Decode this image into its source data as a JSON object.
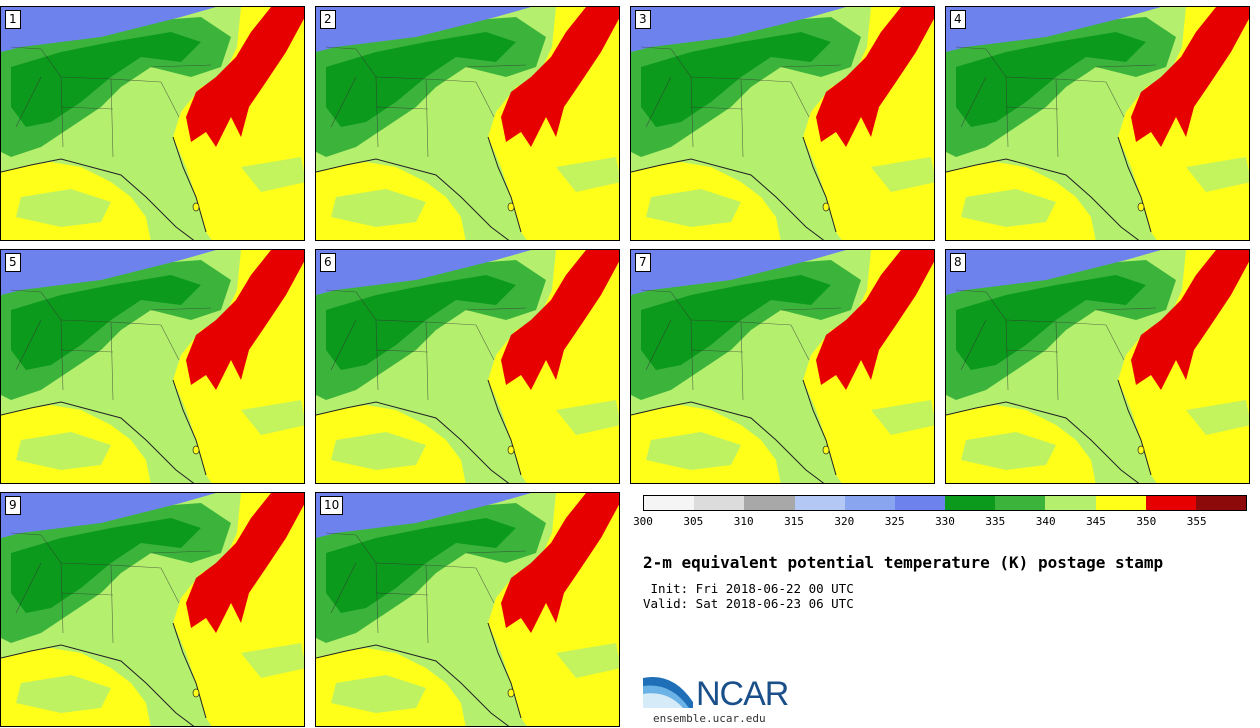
{
  "panels": [
    "1",
    "2",
    "3",
    "4",
    "5",
    "6",
    "7",
    "8",
    "9",
    "10"
  ],
  "colorbar": {
    "colors": [
      "#f5f5f5",
      "#dcdcdc",
      "#a8a8a8",
      "#b4c8f5",
      "#8aa5f0",
      "#6e82ee",
      "#0c9a1c",
      "#3cb43c",
      "#b4f06e",
      "#ffff1a",
      "#e60000",
      "#8c0a0a"
    ],
    "ticks": [
      "300",
      "305",
      "310",
      "315",
      "320",
      "325",
      "330",
      "335",
      "340",
      "345",
      "350",
      "355"
    ]
  },
  "title": "2-m equivalent potential temperature (K) postage stamp",
  "init": " Init: Fri 2018-06-22 00 UTC",
  "valid": "Valid: Sat 2018-06-23 06 UTC",
  "logo": {
    "text": "NCAR",
    "url": "ensemble.ucar.edu"
  }
}
